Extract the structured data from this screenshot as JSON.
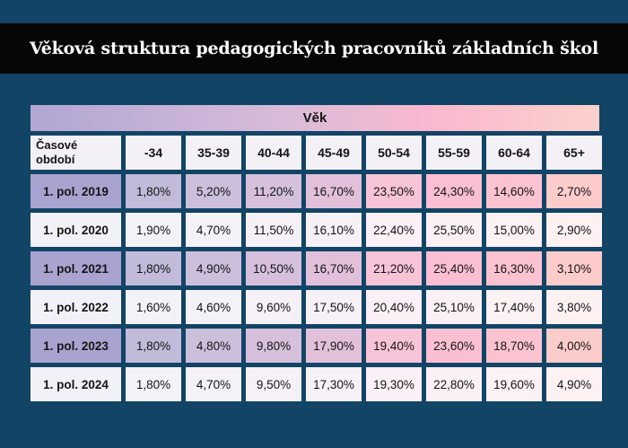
{
  "title": "Věková struktura pedagogických pracovníků základních škol",
  "chart_data": {
    "type": "table",
    "group_header": "Věk",
    "corner_header": "Časové období",
    "columns": [
      "-34",
      "35-39",
      "40-44",
      "45-49",
      "50-54",
      "55-59",
      "60-64",
      "65+"
    ],
    "rows": [
      {
        "label": "1. pol. 2019",
        "values": [
          "1,80%",
          "5,20%",
          "11,20%",
          "16,70%",
          "23,50%",
          "24,30%",
          "14,60%",
          "2,70%"
        ]
      },
      {
        "label": "1. pol. 2020",
        "values": [
          "1,90%",
          "4,70%",
          "11,50%",
          "16,10%",
          "22,40%",
          "25,50%",
          "15,00%",
          "2,90%"
        ]
      },
      {
        "label": "1. pol. 2021",
        "values": [
          "1,80%",
          "4,90%",
          "10,50%",
          "16,70%",
          "21,20%",
          "25,40%",
          "16,30%",
          "3,10%"
        ]
      },
      {
        "label": "1. pol. 2022",
        "values": [
          "1,60%",
          "4,60%",
          "9,60%",
          "17,50%",
          "20,40%",
          "25,10%",
          "17,40%",
          "3,80%"
        ]
      },
      {
        "label": "1. pol. 2023",
        "values": [
          "1,80%",
          "4,80%",
          "9,80%",
          "17,90%",
          "19,40%",
          "23,60%",
          "18,70%",
          "4,00%"
        ]
      },
      {
        "label": "1. pol. 2024",
        "values": [
          "1,80%",
          "4,70%",
          "9,50%",
          "17,30%",
          "19,30%",
          "22,80%",
          "19,60%",
          "4,90%"
        ]
      }
    ]
  }
}
